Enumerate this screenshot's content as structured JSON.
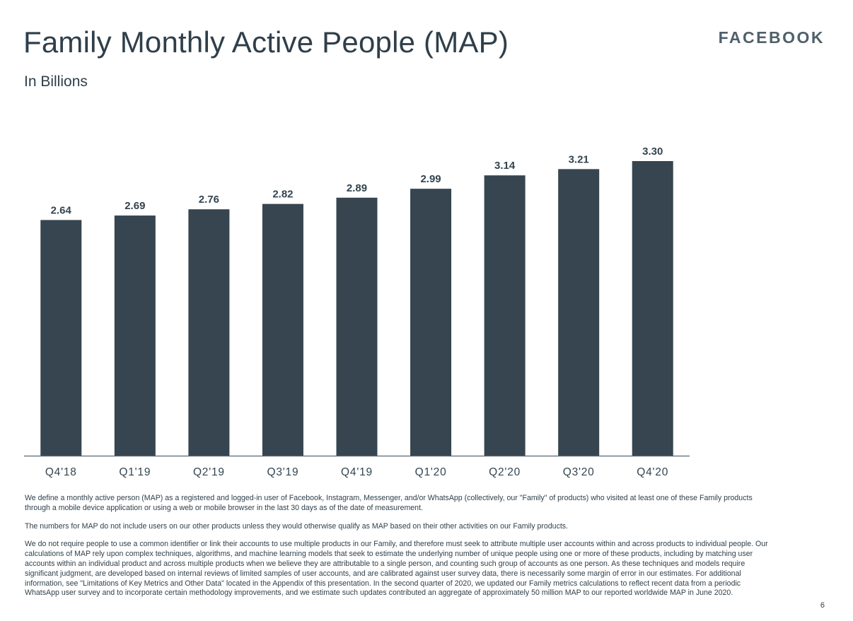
{
  "header": {
    "title": "Family Monthly Active People (MAP)",
    "subtitle": "In Billions",
    "brand": "FACEBOOK"
  },
  "chart_data": {
    "type": "bar",
    "categories": [
      "Q4'18",
      "Q1'19",
      "Q2'19",
      "Q3'19",
      "Q4'19",
      "Q1'20",
      "Q2'20",
      "Q3'20",
      "Q4'20"
    ],
    "values": [
      2.64,
      2.69,
      2.76,
      2.82,
      2.89,
      2.99,
      3.14,
      3.21,
      3.3
    ],
    "value_labels": [
      "2.64",
      "2.69",
      "2.76",
      "2.82",
      "2.89",
      "2.99",
      "3.14",
      "3.21",
      "3.30"
    ],
    "bar_color": "#36454f",
    "ylim": [
      0,
      3.3
    ],
    "grid": false,
    "legend": "none"
  },
  "footnotes": [
    "We define a monthly active person (MAP) as a registered and logged-in user of Facebook, Instagram, Messenger, and/or WhatsApp (collectively, our \"Family\" of products) who visited at least one of these Family products through a mobile device application or using a web or mobile browser in the last 30 days as of the date of measurement.",
    "The numbers for MAP do not include users on our other products unless they would otherwise qualify as MAP based on their other activities on our Family products.",
    "We do not require people to use a common identifier or link their accounts to use multiple products in our Family, and therefore must seek to attribute multiple user accounts within and across products to individual people. Our calculations of MAP rely upon complex techniques, algorithms, and machine learning models that seek to estimate the underlying number of unique people using one or more of these products, including by matching user accounts within an individual product and across multiple products when we believe they are attributable to a single person, and counting such group of accounts as one person. As these techniques and models require significant judgment, are developed based on internal reviews of limited samples of user accounts, and are calibrated against user survey data, there is necessarily some margin of error in our estimates. For additional information, see \"Limitations of Key Metrics and Other Data\" located in the Appendix of this presentation. In the second quarter of 2020, we updated our Family metrics calculations to reflect recent data from a periodic WhatsApp user survey and to incorporate certain methodology improvements, and we estimate such updates contributed an aggregate of approximately 50 million MAP to our reported worldwide MAP in June 2020."
  ],
  "page_number": "6"
}
